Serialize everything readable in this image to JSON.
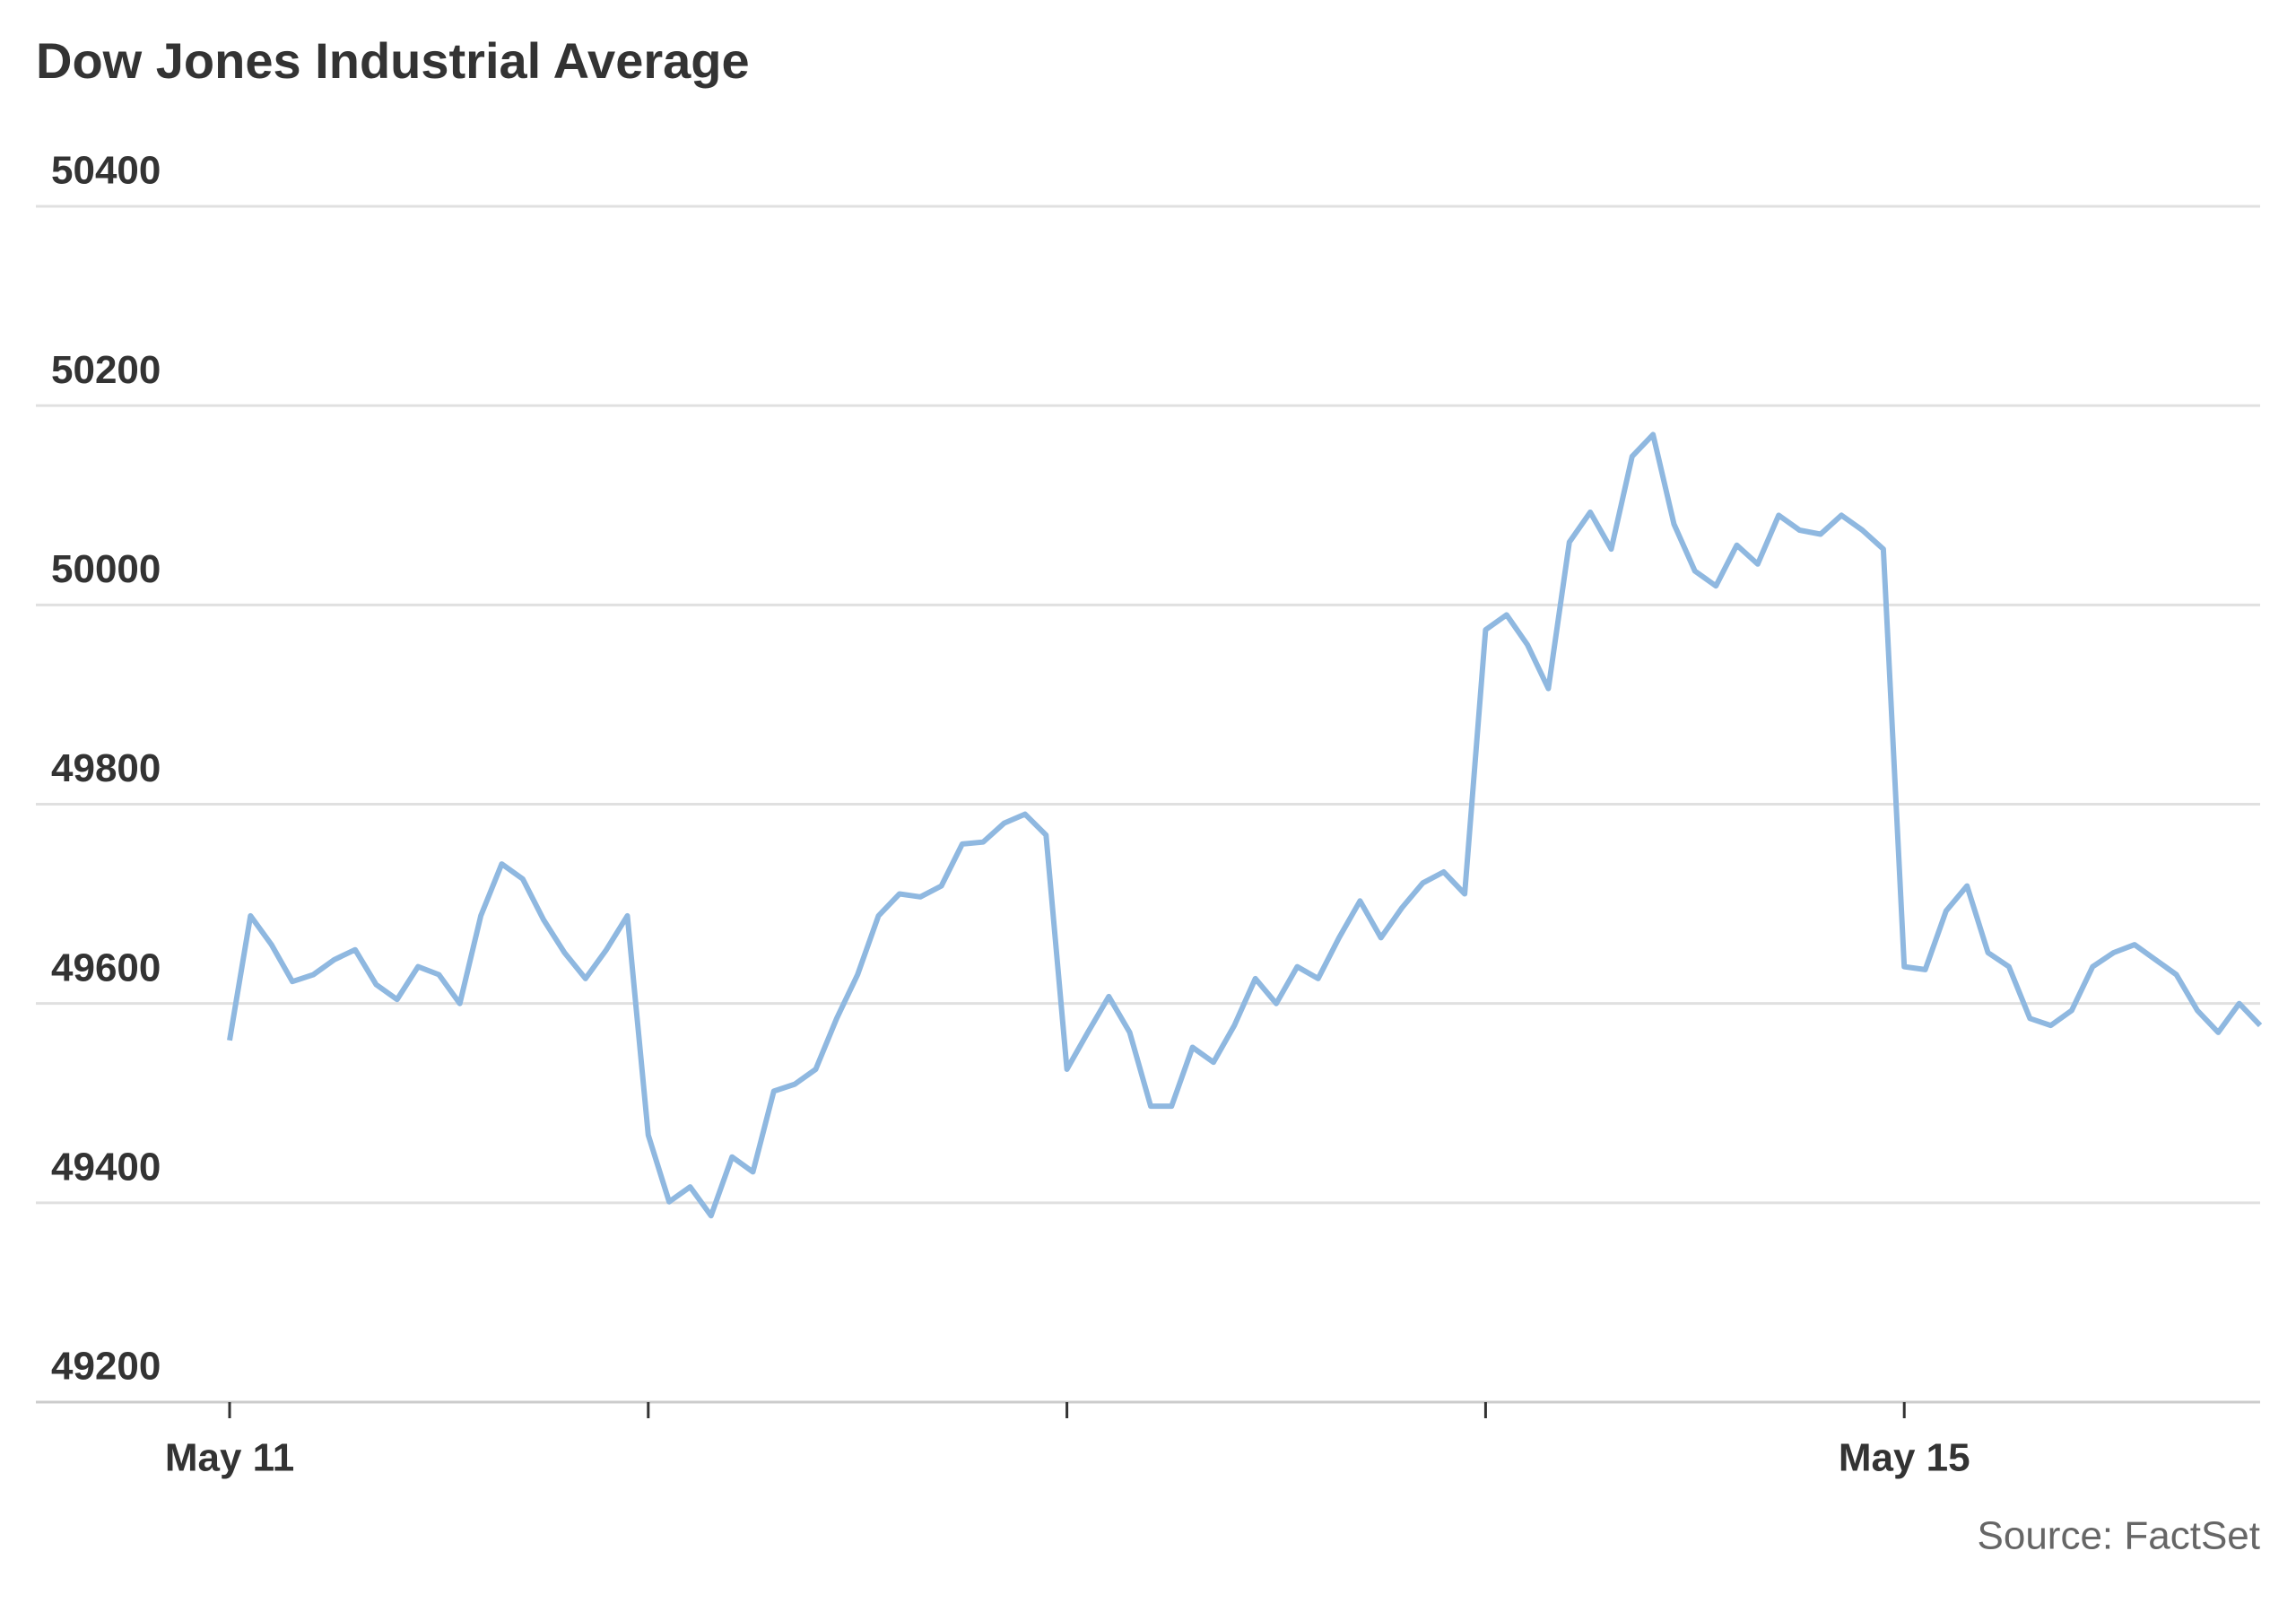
{
  "chart_data": {
    "type": "line",
    "title": "Dow Jones Industrial Average",
    "source": "Source: FactSet",
    "categories": [
      "May 11",
      null,
      null,
      null,
      null,
      null,
      null,
      null,
      null,
      null,
      null,
      null,
      null,
      null,
      null,
      null,
      null,
      null,
      null,
      null,
      null,
      null,
      null,
      null,
      null,
      null,
      null,
      null,
      null,
      null,
      null,
      null,
      null,
      null,
      null,
      null,
      null,
      null,
      null,
      null,
      null,
      null,
      null,
      null,
      null,
      null,
      null,
      null,
      null,
      null,
      null,
      null,
      null,
      null,
      null,
      null,
      null,
      null,
      null,
      null,
      null,
      null,
      null,
      null,
      null,
      null,
      null,
      null,
      null,
      null,
      null,
      null,
      null,
      null,
      null,
      null,
      null,
      null,
      null,
      null,
      "May 15",
      null,
      null,
      null,
      null,
      null,
      null,
      null,
      null,
      null,
      null,
      null,
      null,
      null,
      null,
      null,
      null,
      null
    ],
    "series": [
      {
        "name": "Dow Jones Industrial Average",
        "color": "#8fb8e0",
        "values": [
          49563,
          49688,
          49659,
          49622,
          49629,
          49644,
          49654,
          49619,
          49604,
          49637,
          49629,
          49600,
          49688,
          49740,
          49725,
          49684,
          49651,
          49625,
          49654,
          49688,
          49468,
          49401,
          49416,
          49387,
          49446,
          49431,
          49512,
          49519,
          49534,
          49585,
          49629,
          49688,
          49710,
          49707,
          49718,
          49760,
          49762,
          49781,
          49790,
          49769,
          49534,
          49571,
          49607,
          49571,
          49497,
          49497,
          49556,
          49541,
          49578,
          49625,
          49600,
          49637,
          49625,
          49666,
          49703,
          49666,
          49696,
          49721,
          49732,
          49710,
          49975,
          49990,
          49960,
          49916,
          50063,
          50093,
          50056,
          50149,
          50171,
          50081,
          50034,
          50019,
          50060,
          50041,
          50090,
          50075,
          50071,
          50090,
          50075,
          50056,
          49637,
          49634,
          49693,
          49718,
          49651,
          49637,
          49585,
          49578,
          49593,
          49637,
          49651,
          49659,
          49644,
          49629,
          49593,
          49571,
          49600,
          49578
        ]
      }
    ],
    "ylim": [
      49200,
      50400
    ],
    "yticks": [
      49200,
      49400,
      49600,
      49800,
      50000,
      50200,
      50400
    ],
    "grid": true
  }
}
